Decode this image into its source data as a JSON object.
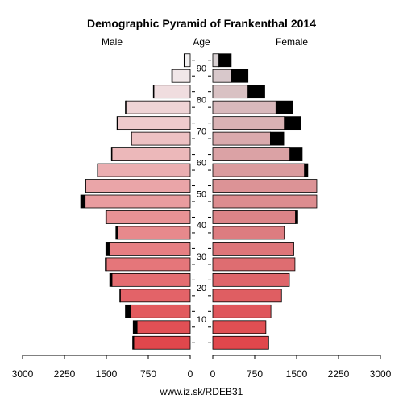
{
  "chart_data": {
    "type": "bar",
    "title": "Demographic Pyramid of Frankenthal 2014",
    "left_label": "Male",
    "center_label": "Age",
    "right_label": "Female",
    "footer": "www.iz.sk/RDEB31",
    "xlim": [
      0,
      3000
    ],
    "x_ticks": [
      "0",
      "750",
      "1500",
      "2250",
      "3000"
    ],
    "age_ticks": [
      "10",
      "20",
      "30",
      "40",
      "50",
      "60",
      "70",
      "80",
      "90"
    ],
    "series": [
      {
        "name": "Male",
        "base": [
          1010,
          950,
          1070,
          1250,
          1400,
          1500,
          1450,
          1300,
          1500,
          1880,
          1870,
          1650,
          1400,
          1050,
          1300,
          1150,
          650,
          320,
          100
        ],
        "extra": [
          20,
          70,
          90,
          10,
          40,
          20,
          60,
          30,
          10,
          80,
          10,
          10,
          10,
          10,
          10,
          10,
          10,
          10,
          10
        ]
      },
      {
        "name": "Female",
        "base": [
          1000,
          950,
          1040,
          1230,
          1370,
          1470,
          1450,
          1280,
          1480,
          1860,
          1860,
          1640,
          1380,
          1030,
          1280,
          1130,
          630,
          330,
          110
        ],
        "extra": [
          0,
          0,
          0,
          0,
          0,
          0,
          0,
          0,
          40,
          0,
          0,
          60,
          220,
          240,
          300,
          300,
          300,
          300,
          220
        ]
      }
    ],
    "colors": {
      "male_young": "#e0474c",
      "male_old": "#f2f0f1",
      "female_young": "#e0474c",
      "female_old": "#d8d0d2",
      "extra": "#000000"
    }
  }
}
